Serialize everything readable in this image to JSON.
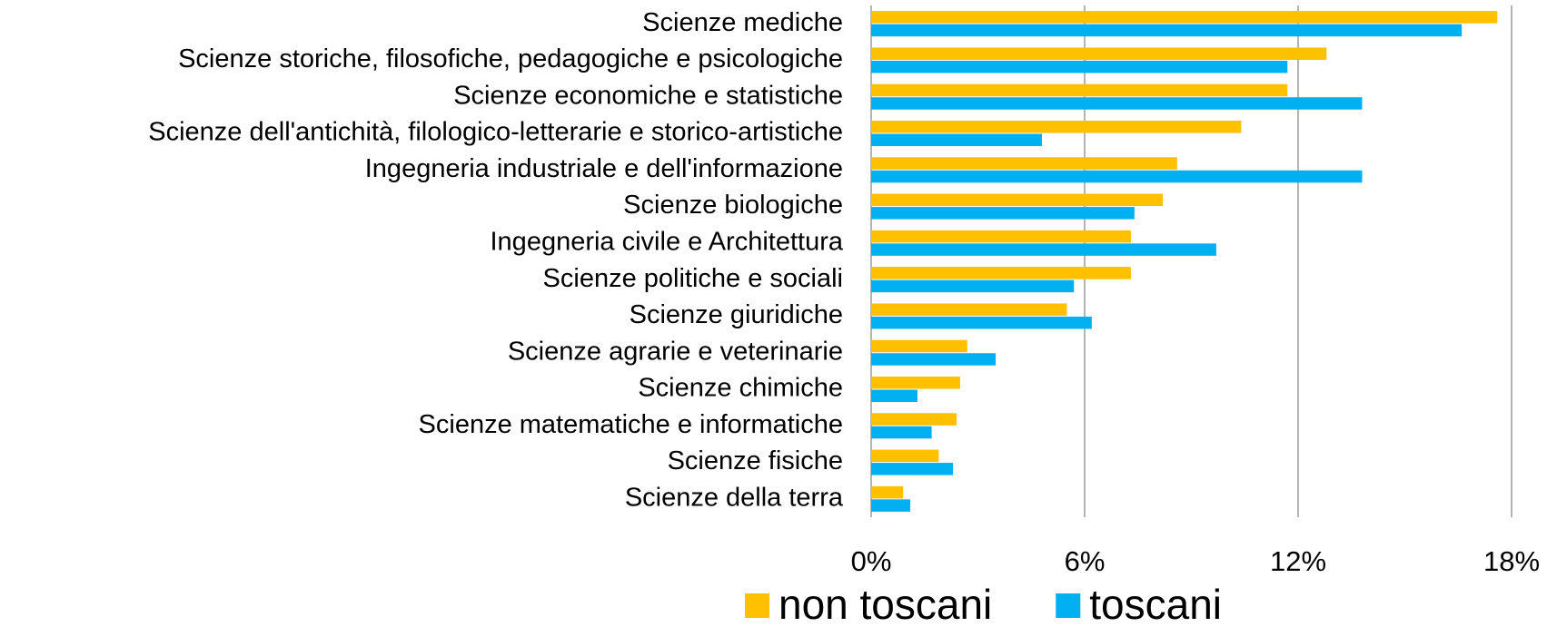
{
  "chart_data": {
    "type": "barh",
    "categories": [
      "Scienze mediche",
      "Scienze storiche, filosofiche, pedagogiche e psicologiche",
      "Scienze economiche e statistiche",
      "Scienze dell'antichità, filologico-letterarie e storico-artistiche",
      "Ingegneria industriale e dell'informazione",
      "Scienze biologiche",
      "Ingegneria civile e Architettura",
      "Scienze politiche e sociali",
      "Scienze giuridiche",
      "Scienze agrarie e veterinarie",
      "Scienze chimiche",
      "Scienze matematiche e informatiche",
      "Scienze fisiche",
      "Scienze della terra"
    ],
    "series": [
      {
        "name": "non toscani",
        "color": "#ffc000",
        "values": [
          17.6,
          12.8,
          11.7,
          10.4,
          8.6,
          8.2,
          7.3,
          7.3,
          5.5,
          2.7,
          2.5,
          2.4,
          1.9,
          0.9
        ]
      },
      {
        "name": "toscani",
        "color": "#00b0f0",
        "values": [
          16.6,
          11.7,
          13.8,
          4.8,
          13.8,
          7.4,
          9.7,
          5.7,
          6.2,
          3.5,
          1.3,
          1.7,
          2.3,
          1.1
        ]
      }
    ],
    "xlim": [
      0,
      18
    ],
    "xticks": [
      {
        "value": 0,
        "label": "0%"
      },
      {
        "value": 6,
        "label": "6%"
      },
      {
        "value": 12,
        "label": "12%"
      },
      {
        "value": 18,
        "label": "18%"
      }
    ],
    "grid": true,
    "legend": "bottom"
  }
}
